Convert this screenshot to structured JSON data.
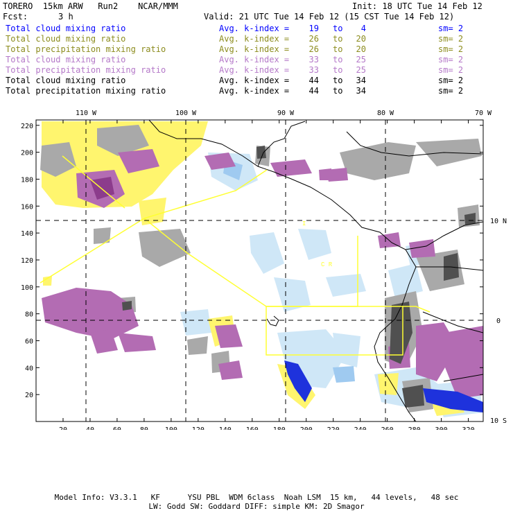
{
  "header": {
    "model_line": "TORERO  15km ARW   Run2    NCAR/MMM",
    "init": "Init: 18 UTC Tue 14 Feb 12",
    "fcst_label": "Fcst:",
    "fcst_value": "3 h",
    "valid": "Valid: 21 UTC Tue 14 Feb 12 (15 CST Tue 14 Feb 12)"
  },
  "legend": {
    "avg_label": "Avg. k-index =",
    "to_label": "to",
    "rows": [
      {
        "field": "Total cloud mixing ratio",
        "k1": "19",
        "k2": "4",
        "sm": "sm= 2",
        "color": "#0000ff"
      },
      {
        "field": "Total cloud mixing ratio",
        "k1": "26",
        "k2": "20",
        "sm": "sm= 2",
        "color": "#8c8c1e"
      },
      {
        "field": "Total precipitation mixing ratio",
        "k1": "26",
        "k2": "20",
        "sm": "sm= 2",
        "color": "#8c8c1e"
      },
      {
        "field": "Total cloud mixing ratio",
        "k1": "33",
        "k2": "25",
        "sm": "sm= 2",
        "color": "#b478c8"
      },
      {
        "field": "Total precipitation mixing ratio",
        "k1": "33",
        "k2": "25",
        "sm": "sm= 2",
        "color": "#b478c8"
      },
      {
        "field": "Total cloud mixing ratio",
        "k1": "44",
        "k2": "34",
        "sm": "sm= 2",
        "color": "#000000"
      },
      {
        "field": "Total precipitation mixing ratio",
        "k1": "44",
        "k2": "34",
        "sm": "sm= 2",
        "color": "#000000"
      }
    ]
  },
  "map": {
    "lon_labels": [
      "110 W",
      "100 W",
      "90 W",
      "80 W",
      "70 W"
    ],
    "lat_labels": [
      "10 N",
      "0",
      "10 S"
    ],
    "x_ticks": [
      "20",
      "40",
      "60",
      "80",
      "100",
      "120",
      "140",
      "160",
      "180",
      "200",
      "220",
      "240",
      "260",
      "280",
      "300",
      "320"
    ],
    "y_ticks": [
      "220",
      "200",
      "180",
      "160",
      "140",
      "120",
      "100",
      "80",
      "60",
      "40",
      "20"
    ],
    "x_range": [
      0,
      331
    ],
    "y_range": [
      0,
      224
    ],
    "box_label_1": "I",
    "box_label_2": "C  R",
    "colors": {
      "gray": "#a9a9a9",
      "dark_gray": "#505050",
      "yellow": "#fff56e",
      "purple": "#b36cb3",
      "dark_purple": "#8c3c8c",
      "light_blue": "#cfe7f7",
      "blue": "#1e32dc",
      "box": "#ffff33"
    }
  },
  "footer": {
    "line1": "Model Info: V3.3.1   KF      YSU PBL  WDM 6class  Noah LSM  15 km,   44 levels,   48 sec",
    "line2": "LW: Godd SW: Goddard DIFF: simple KM: 2D Smagor"
  }
}
